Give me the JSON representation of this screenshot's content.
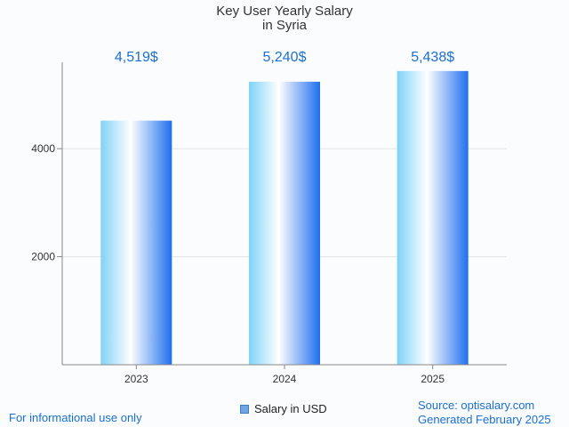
{
  "chart_data": {
    "type": "bar",
    "title": "Key User Yearly Salary",
    "subtitle": "in Syria",
    "categories": [
      "2023",
      "2024",
      "2025"
    ],
    "series": [
      {
        "name": "Salary in USD",
        "values": [
          4519,
          5240,
          5438
        ]
      }
    ],
    "data_labels": [
      "4,519$",
      "5,240$",
      "5,438$"
    ],
    "yticks": [
      2000,
      4000
    ],
    "ylim": [
      0,
      5600
    ],
    "grid": true,
    "legend_position": "bottom-center"
  },
  "colors": {
    "bar_dark": "#1f6ff0",
    "bar_light": "#ffffff",
    "bar_edge": "#7fd3f7",
    "data_label": "#1a6fd6",
    "accent_text": "#1a6fd6"
  },
  "footer": {
    "disclaimer": "For informational use only",
    "source": "Source: optisalary.com",
    "generated": "Generated February 2025"
  }
}
